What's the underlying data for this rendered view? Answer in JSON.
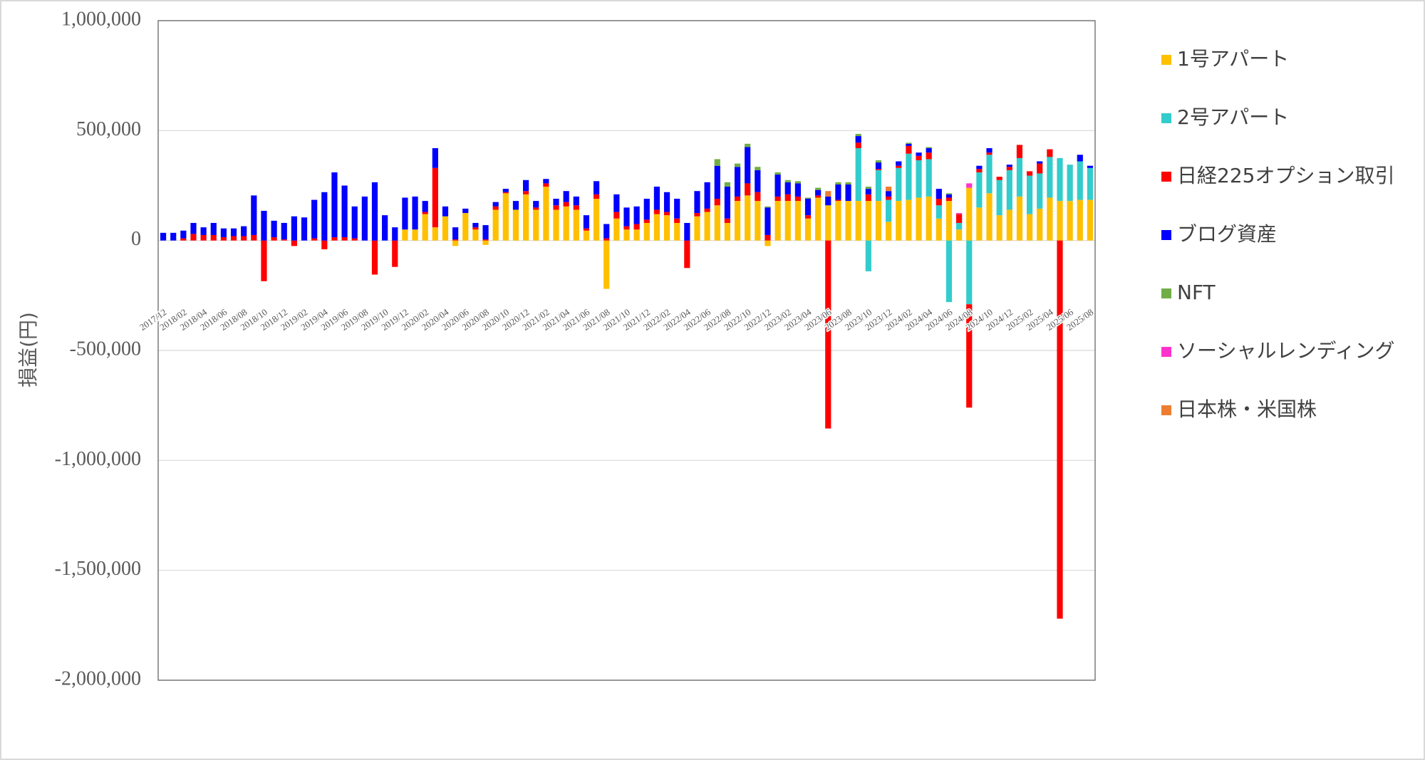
{
  "chart_data": {
    "type": "bar",
    "stacked": true,
    "y_label": "損益(円)",
    "ylim": [
      -2000000,
      1000000
    ],
    "yticks": [
      {
        "value": -2000000,
        "label": "-2,000,000"
      },
      {
        "value": -1500000,
        "label": "-1,500,000"
      },
      {
        "value": -1000000,
        "label": "-1,000,000"
      },
      {
        "value": -500000,
        "label": "-500,000"
      },
      0,
      {
        "value": 500000,
        "label": "500,000"
      },
      {
        "value": 1000000,
        "label": "1,000,000"
      }
    ],
    "negative_tick_color": "#ff0000",
    "grid": true,
    "legend": "right",
    "categories": [
      "2017/12",
      null,
      "2018/02",
      null,
      "2018/04",
      null,
      "2018/06",
      null,
      "2018/08",
      null,
      "2018/10",
      null,
      "2018/12",
      null,
      "2019/02",
      null,
      "2019/04",
      null,
      "2019/06",
      null,
      "2019/08",
      null,
      "2019/10",
      null,
      "2019/12",
      null,
      "2020/02",
      null,
      "2020/04",
      null,
      "2020/06",
      null,
      "2020/08",
      null,
      "2020/10",
      null,
      "2020/12",
      null,
      "2021/02",
      null,
      "2021/04",
      null,
      "2021/06",
      null,
      "2021/08",
      null,
      "2021/10",
      null,
      "2021/12",
      null,
      "2022/02",
      null,
      "2022/04",
      null,
      "2022/06",
      null,
      "2022/08",
      null,
      "2022/10",
      null,
      "2022/12",
      null,
      "2023/02",
      null,
      "2023/04",
      null,
      "2023/06",
      null,
      "2023/08",
      null,
      "2023/10",
      null,
      "2023/12",
      null,
      "2024/02",
      null,
      "2024/04",
      null,
      "2024/06",
      null,
      "2024/08",
      null,
      "2024/10",
      null,
      "2024/12",
      null,
      "2025/02",
      null,
      "2025/04",
      null,
      "2025/06",
      null,
      "2025/08"
    ],
    "series": [
      {
        "name": "1号アパート",
        "color": "#ffc000",
        "values": [
          0,
          0,
          0,
          0,
          0,
          0,
          0,
          0,
          0,
          0,
          0,
          0,
          0,
          0,
          0,
          0,
          0,
          0,
          0,
          0,
          0,
          0,
          0,
          0,
          50000,
          50000,
          120000,
          60000,
          110000,
          -25000,
          125000,
          50000,
          -20000,
          140000,
          215000,
          140000,
          210000,
          140000,
          245000,
          140000,
          155000,
          140000,
          45000,
          190000,
          -220000,
          100000,
          50000,
          50000,
          80000,
          120000,
          115000,
          80000,
          0,
          110000,
          130000,
          160000,
          80000,
          180000,
          205000,
          180000,
          -25000,
          180000,
          180000,
          180000,
          100000,
          195000,
          160000,
          180000,
          180000,
          180000,
          180000,
          180000,
          85000,
          180000,
          185000,
          195000,
          200000,
          100000,
          180000,
          50000,
          240000,
          150000,
          215000,
          115000,
          140000,
          200000,
          120000,
          145000,
          195000,
          180000,
          180000,
          185000,
          185000
        ]
      },
      {
        "name": "2号アパート",
        "color": "#33cccc",
        "values": [
          0,
          0,
          0,
          0,
          0,
          0,
          0,
          0,
          0,
          0,
          0,
          0,
          0,
          0,
          0,
          0,
          0,
          0,
          0,
          0,
          0,
          0,
          0,
          0,
          0,
          0,
          0,
          0,
          0,
          0,
          0,
          0,
          0,
          0,
          0,
          0,
          0,
          0,
          0,
          0,
          0,
          0,
          0,
          0,
          0,
          0,
          0,
          0,
          0,
          0,
          0,
          0,
          0,
          0,
          0,
          0,
          0,
          0,
          0,
          0,
          0,
          0,
          0,
          0,
          0,
          0,
          0,
          0,
          0,
          240000,
          -140000,
          140000,
          100000,
          150000,
          210000,
          170000,
          170000,
          60000,
          -280000,
          30000,
          -290000,
          160000,
          175000,
          160000,
          180000,
          175000,
          175000,
          160000,
          185000,
          195000,
          165000,
          175000,
          145000
        ]
      },
      {
        "name": "日経225オプション取引",
        "color": "#ff0000",
        "values": [
          0,
          0,
          10000,
          30000,
          25000,
          25000,
          15000,
          20000,
          20000,
          25000,
          -185000,
          15000,
          5000,
          -25000,
          0,
          10000,
          -40000,
          15000,
          15000,
          10000,
          0,
          -155000,
          0,
          -120000,
          0,
          0,
          10000,
          270000,
          0,
          5000,
          0,
          10000,
          5000,
          15000,
          5000,
          0,
          15000,
          10000,
          15000,
          20000,
          20000,
          20000,
          10000,
          20000,
          10000,
          30000,
          15000,
          25000,
          15000,
          20000,
          15000,
          20000,
          -125000,
          15000,
          15000,
          30000,
          20000,
          20000,
          55000,
          40000,
          25000,
          20000,
          30000,
          20000,
          15000,
          10000,
          -855000,
          5000,
          0,
          25000,
          30000,
          5000,
          15000,
          10000,
          35000,
          20000,
          30000,
          30000,
          15000,
          40000,
          -470000,
          15000,
          10000,
          15000,
          15000,
          60000,
          20000,
          45000,
          35000,
          -1720000,
          0,
          0,
          0
        ]
      },
      {
        "name": "ブログ資産",
        "color": "#0000ff",
        "values": [
          35000,
          35000,
          35000,
          50000,
          35000,
          55000,
          40000,
          35000,
          45000,
          180000,
          135000,
          75000,
          75000,
          110000,
          105000,
          175000,
          220000,
          295000,
          235000,
          145000,
          200000,
          265000,
          115000,
          60000,
          145000,
          150000,
          50000,
          90000,
          45000,
          55000,
          20000,
          20000,
          65000,
          20000,
          15000,
          40000,
          50000,
          30000,
          20000,
          30000,
          50000,
          40000,
          60000,
          60000,
          65000,
          80000,
          85000,
          80000,
          95000,
          105000,
          90000,
          90000,
          80000,
          100000,
          120000,
          150000,
          145000,
          135000,
          165000,
          100000,
          125000,
          100000,
          55000,
          60000,
          75000,
          25000,
          40000,
          70000,
          75000,
          30000,
          25000,
          30000,
          25000,
          20000,
          10000,
          15000,
          20000,
          45000,
          15000,
          0,
          0,
          15000,
          20000,
          0,
          10000,
          0,
          0,
          10000,
          0,
          0,
          0,
          30000,
          10000
        ]
      },
      {
        "name": "NFT",
        "color": "#70ad47",
        "values": [
          0,
          0,
          0,
          0,
          0,
          0,
          0,
          0,
          0,
          0,
          0,
          0,
          0,
          0,
          0,
          0,
          0,
          0,
          0,
          0,
          0,
          0,
          0,
          0,
          0,
          0,
          0,
          0,
          0,
          0,
          0,
          0,
          0,
          0,
          0,
          0,
          0,
          0,
          0,
          0,
          0,
          0,
          0,
          0,
          0,
          0,
          0,
          0,
          0,
          0,
          0,
          0,
          0,
          0,
          0,
          30000,
          20000,
          15000,
          15000,
          15000,
          5000,
          10000,
          10000,
          10000,
          5000,
          10000,
          0,
          10000,
          10000,
          10000,
          10000,
          10000,
          0,
          0,
          5000,
          0,
          5000,
          0,
          5000,
          0,
          0,
          0,
          0,
          0,
          0,
          0,
          0,
          0,
          0,
          0,
          0,
          0,
          0
        ]
      },
      {
        "name": "ソーシャルレンディング",
        "color": "#ff33cc",
        "values": [
          0,
          0,
          0,
          0,
          0,
          0,
          0,
          0,
          0,
          0,
          0,
          0,
          0,
          0,
          0,
          0,
          0,
          0,
          0,
          0,
          0,
          0,
          0,
          0,
          0,
          0,
          0,
          0,
          0,
          0,
          0,
          0,
          0,
          0,
          0,
          0,
          0,
          0,
          0,
          0,
          0,
          0,
          0,
          0,
          0,
          0,
          0,
          0,
          0,
          0,
          0,
          0,
          0,
          0,
          0,
          0,
          0,
          0,
          0,
          0,
          0,
          0,
          0,
          0,
          0,
          0,
          0,
          0,
          0,
          0,
          0,
          0,
          0,
          0,
          0,
          0,
          0,
          0,
          0,
          5000,
          20000,
          0,
          0,
          0,
          0,
          0,
          0,
          0,
          0,
          0,
          0,
          0,
          0
        ]
      },
      {
        "name": "日本株・米国株",
        "color": "#ed7d31",
        "values": [
          0,
          0,
          0,
          0,
          0,
          0,
          0,
          0,
          0,
          0,
          0,
          0,
          0,
          0,
          0,
          0,
          0,
          0,
          0,
          0,
          0,
          0,
          0,
          0,
          0,
          0,
          0,
          0,
          0,
          0,
          0,
          0,
          0,
          0,
          0,
          0,
          0,
          0,
          0,
          0,
          0,
          0,
          0,
          0,
          0,
          0,
          0,
          0,
          0,
          0,
          0,
          0,
          0,
          0,
          0,
          0,
          0,
          0,
          0,
          0,
          0,
          0,
          0,
          0,
          0,
          0,
          25000,
          0,
          0,
          0,
          0,
          0,
          20000,
          0,
          0,
          0,
          0,
          0,
          0,
          0,
          0,
          0,
          0,
          0,
          0,
          0,
          0,
          0,
          0,
          0,
          0,
          0,
          0
        ]
      }
    ]
  }
}
